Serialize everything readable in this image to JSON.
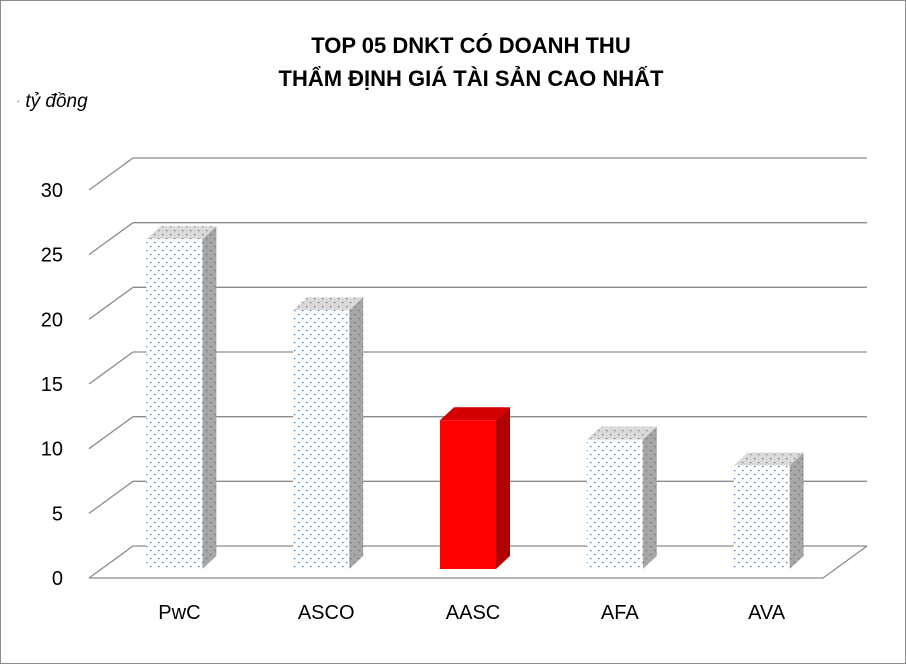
{
  "chart_data": {
    "type": "bar",
    "title": [
      "TOP 05 DNKT CÓ DOANH THU",
      "THẨM ĐỊNH GIÁ TÀI SẢN CAO NHẤT"
    ],
    "ylabel": "tỷ đồng",
    "categories": [
      "PwC",
      "ASCO",
      "AASC",
      "AFA",
      "AVA"
    ],
    "values": [
      25.5,
      20,
      11.5,
      10,
      8
    ],
    "ylim": [
      0,
      30
    ],
    "yticks": [
      0,
      5,
      10,
      15,
      20,
      25,
      30
    ],
    "grid": true,
    "bar_style": "3d",
    "highlight_category": "AASC",
    "colors": {
      "bar_pattern_fill": "#ffffff",
      "bar_pattern_dot": "#2e75b6",
      "bar_pattern_side": "#9e9e9e",
      "highlight_front": "#ff0000",
      "highlight_side": "#b00000",
      "highlight_top": "#d40000",
      "grid": "#8c8c8c"
    }
  }
}
